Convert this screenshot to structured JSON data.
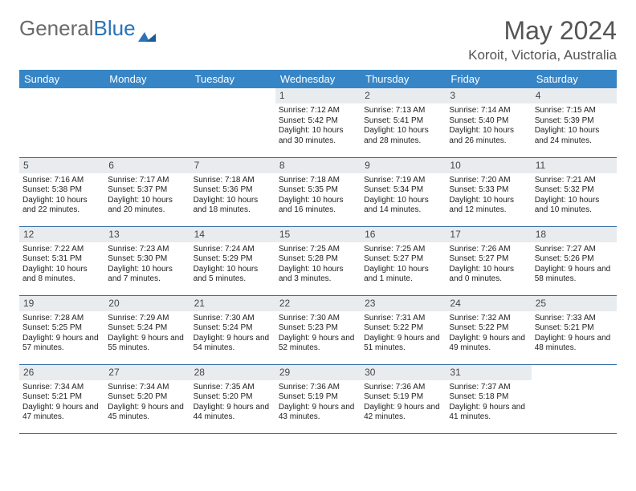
{
  "logo": {
    "text1": "General",
    "text2": "Blue"
  },
  "title": "May 2024",
  "location": "Koroit, Victoria, Australia",
  "colors": {
    "header_bg": "#3685c6",
    "header_text": "#ffffff",
    "daynum_bg": "#e9ecef",
    "row_border": "#2f6aa3",
    "logo_gray": "#6a6a6a",
    "logo_blue": "#2a72b8",
    "title_color": "#555555"
  },
  "weekdays": [
    "Sunday",
    "Monday",
    "Tuesday",
    "Wednesday",
    "Thursday",
    "Friday",
    "Saturday"
  ],
  "weeks": [
    [
      {
        "n": "",
        "sr": "",
        "ss": "",
        "dl": ""
      },
      {
        "n": "",
        "sr": "",
        "ss": "",
        "dl": ""
      },
      {
        "n": "",
        "sr": "",
        "ss": "",
        "dl": ""
      },
      {
        "n": "1",
        "sr": "Sunrise: 7:12 AM",
        "ss": "Sunset: 5:42 PM",
        "dl": "Daylight: 10 hours and 30 minutes."
      },
      {
        "n": "2",
        "sr": "Sunrise: 7:13 AM",
        "ss": "Sunset: 5:41 PM",
        "dl": "Daylight: 10 hours and 28 minutes."
      },
      {
        "n": "3",
        "sr": "Sunrise: 7:14 AM",
        "ss": "Sunset: 5:40 PM",
        "dl": "Daylight: 10 hours and 26 minutes."
      },
      {
        "n": "4",
        "sr": "Sunrise: 7:15 AM",
        "ss": "Sunset: 5:39 PM",
        "dl": "Daylight: 10 hours and 24 minutes."
      }
    ],
    [
      {
        "n": "5",
        "sr": "Sunrise: 7:16 AM",
        "ss": "Sunset: 5:38 PM",
        "dl": "Daylight: 10 hours and 22 minutes."
      },
      {
        "n": "6",
        "sr": "Sunrise: 7:17 AM",
        "ss": "Sunset: 5:37 PM",
        "dl": "Daylight: 10 hours and 20 minutes."
      },
      {
        "n": "7",
        "sr": "Sunrise: 7:18 AM",
        "ss": "Sunset: 5:36 PM",
        "dl": "Daylight: 10 hours and 18 minutes."
      },
      {
        "n": "8",
        "sr": "Sunrise: 7:18 AM",
        "ss": "Sunset: 5:35 PM",
        "dl": "Daylight: 10 hours and 16 minutes."
      },
      {
        "n": "9",
        "sr": "Sunrise: 7:19 AM",
        "ss": "Sunset: 5:34 PM",
        "dl": "Daylight: 10 hours and 14 minutes."
      },
      {
        "n": "10",
        "sr": "Sunrise: 7:20 AM",
        "ss": "Sunset: 5:33 PM",
        "dl": "Daylight: 10 hours and 12 minutes."
      },
      {
        "n": "11",
        "sr": "Sunrise: 7:21 AM",
        "ss": "Sunset: 5:32 PM",
        "dl": "Daylight: 10 hours and 10 minutes."
      }
    ],
    [
      {
        "n": "12",
        "sr": "Sunrise: 7:22 AM",
        "ss": "Sunset: 5:31 PM",
        "dl": "Daylight: 10 hours and 8 minutes."
      },
      {
        "n": "13",
        "sr": "Sunrise: 7:23 AM",
        "ss": "Sunset: 5:30 PM",
        "dl": "Daylight: 10 hours and 7 minutes."
      },
      {
        "n": "14",
        "sr": "Sunrise: 7:24 AM",
        "ss": "Sunset: 5:29 PM",
        "dl": "Daylight: 10 hours and 5 minutes."
      },
      {
        "n": "15",
        "sr": "Sunrise: 7:25 AM",
        "ss": "Sunset: 5:28 PM",
        "dl": "Daylight: 10 hours and 3 minutes."
      },
      {
        "n": "16",
        "sr": "Sunrise: 7:25 AM",
        "ss": "Sunset: 5:27 PM",
        "dl": "Daylight: 10 hours and 1 minute."
      },
      {
        "n": "17",
        "sr": "Sunrise: 7:26 AM",
        "ss": "Sunset: 5:27 PM",
        "dl": "Daylight: 10 hours and 0 minutes."
      },
      {
        "n": "18",
        "sr": "Sunrise: 7:27 AM",
        "ss": "Sunset: 5:26 PM",
        "dl": "Daylight: 9 hours and 58 minutes."
      }
    ],
    [
      {
        "n": "19",
        "sr": "Sunrise: 7:28 AM",
        "ss": "Sunset: 5:25 PM",
        "dl": "Daylight: 9 hours and 57 minutes."
      },
      {
        "n": "20",
        "sr": "Sunrise: 7:29 AM",
        "ss": "Sunset: 5:24 PM",
        "dl": "Daylight: 9 hours and 55 minutes."
      },
      {
        "n": "21",
        "sr": "Sunrise: 7:30 AM",
        "ss": "Sunset: 5:24 PM",
        "dl": "Daylight: 9 hours and 54 minutes."
      },
      {
        "n": "22",
        "sr": "Sunrise: 7:30 AM",
        "ss": "Sunset: 5:23 PM",
        "dl": "Daylight: 9 hours and 52 minutes."
      },
      {
        "n": "23",
        "sr": "Sunrise: 7:31 AM",
        "ss": "Sunset: 5:22 PM",
        "dl": "Daylight: 9 hours and 51 minutes."
      },
      {
        "n": "24",
        "sr": "Sunrise: 7:32 AM",
        "ss": "Sunset: 5:22 PM",
        "dl": "Daylight: 9 hours and 49 minutes."
      },
      {
        "n": "25",
        "sr": "Sunrise: 7:33 AM",
        "ss": "Sunset: 5:21 PM",
        "dl": "Daylight: 9 hours and 48 minutes."
      }
    ],
    [
      {
        "n": "26",
        "sr": "Sunrise: 7:34 AM",
        "ss": "Sunset: 5:21 PM",
        "dl": "Daylight: 9 hours and 47 minutes."
      },
      {
        "n": "27",
        "sr": "Sunrise: 7:34 AM",
        "ss": "Sunset: 5:20 PM",
        "dl": "Daylight: 9 hours and 45 minutes."
      },
      {
        "n": "28",
        "sr": "Sunrise: 7:35 AM",
        "ss": "Sunset: 5:20 PM",
        "dl": "Daylight: 9 hours and 44 minutes."
      },
      {
        "n": "29",
        "sr": "Sunrise: 7:36 AM",
        "ss": "Sunset: 5:19 PM",
        "dl": "Daylight: 9 hours and 43 minutes."
      },
      {
        "n": "30",
        "sr": "Sunrise: 7:36 AM",
        "ss": "Sunset: 5:19 PM",
        "dl": "Daylight: 9 hours and 42 minutes."
      },
      {
        "n": "31",
        "sr": "Sunrise: 7:37 AM",
        "ss": "Sunset: 5:18 PM",
        "dl": "Daylight: 9 hours and 41 minutes."
      },
      {
        "n": "",
        "sr": "",
        "ss": "",
        "dl": ""
      }
    ]
  ]
}
